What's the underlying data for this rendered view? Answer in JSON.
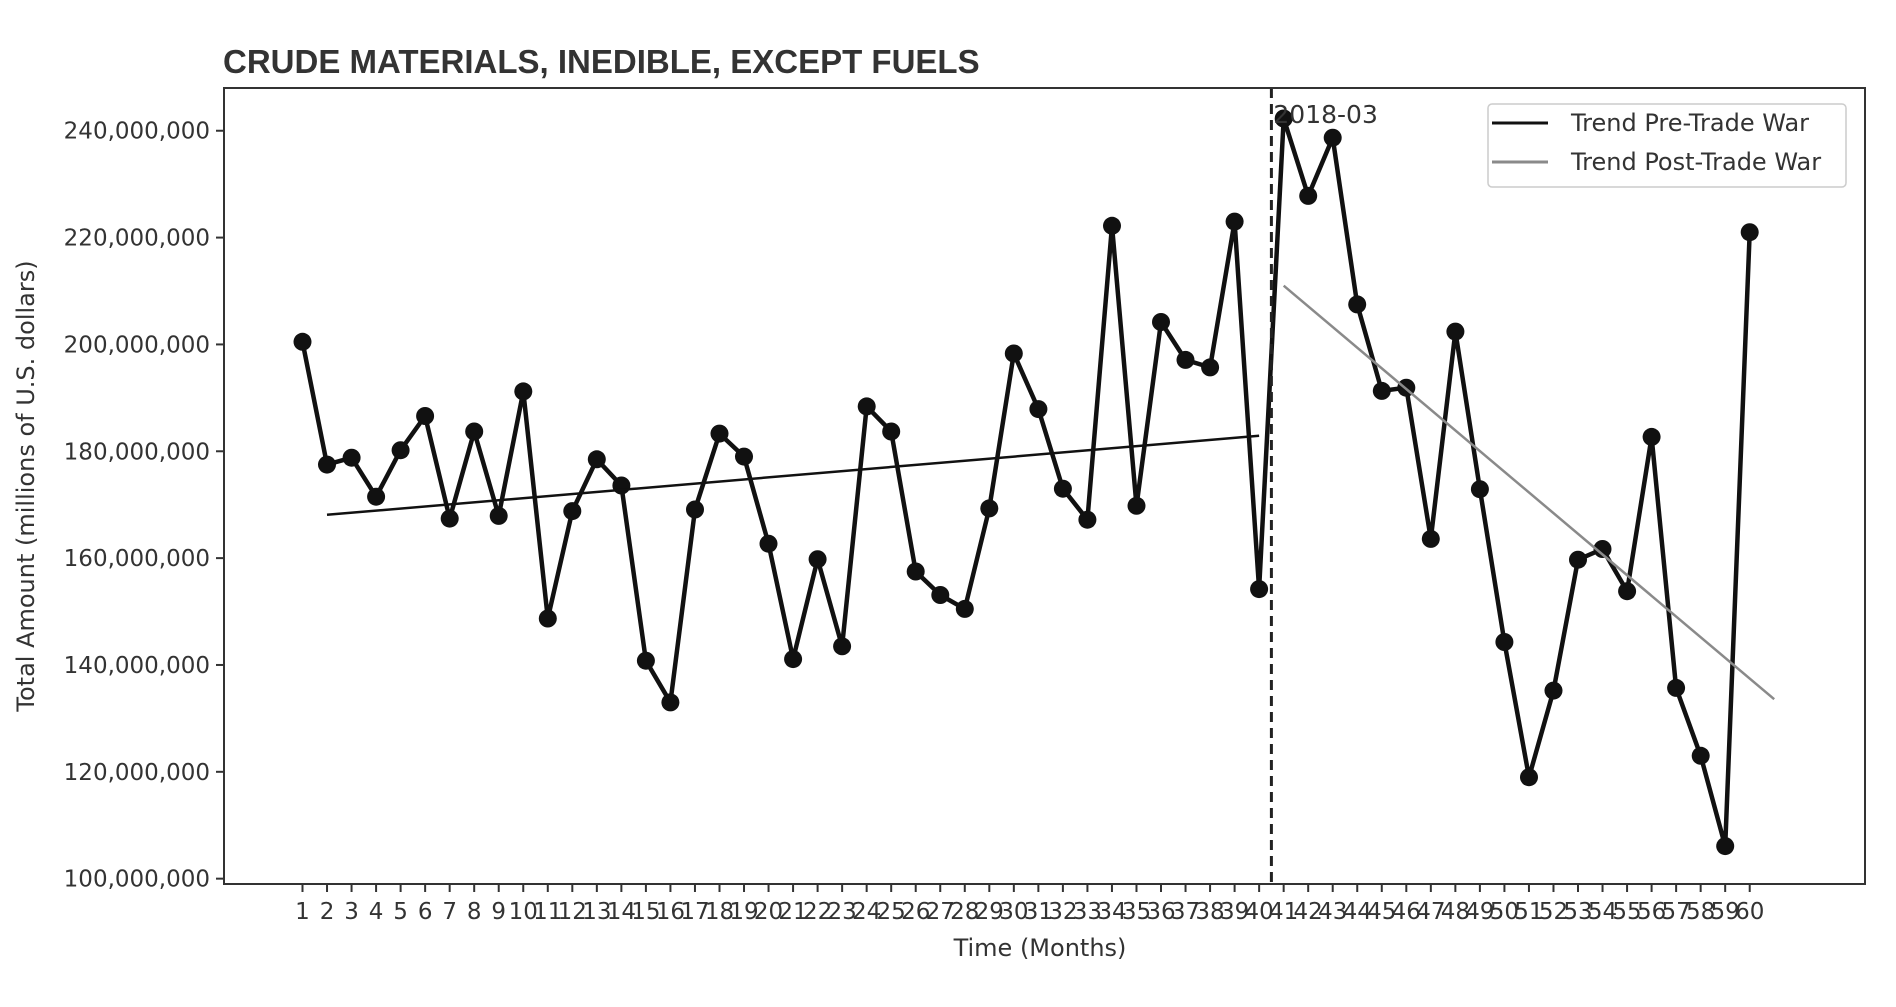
{
  "chart_data": {
    "type": "line",
    "title": "CRUDE MATERIALS, INEDIBLE, EXCEPT FUELS",
    "xlabel": "Time (Months)",
    "ylabel": "Total Amount (millions of U.S. dollars)",
    "xlim": [
      -2.2,
      64.7
    ],
    "ylim": [
      99000000,
      248000000
    ],
    "y_ticks": [
      100000000,
      120000000,
      140000000,
      160000000,
      180000000,
      200000000,
      220000000,
      240000000
    ],
    "y_tick_labels": [
      "100,000,000",
      "120,000,000",
      "140,000,000",
      "160,000,000",
      "180,000,000",
      "200,000,000",
      "220,000,000",
      "240,000,000"
    ],
    "x_ticks": [
      1,
      2,
      3,
      4,
      5,
      6,
      7,
      8,
      9,
      10,
      11,
      12,
      13,
      14,
      15,
      16,
      17,
      18,
      19,
      20,
      21,
      22,
      23,
      24,
      25,
      26,
      27,
      28,
      29,
      30,
      31,
      32,
      33,
      34,
      35,
      36,
      37,
      38,
      39,
      40,
      41,
      42,
      43,
      44,
      45,
      46,
      47,
      48,
      49,
      50,
      51,
      52,
      53,
      54,
      55,
      56,
      57,
      58,
      59,
      60
    ],
    "x_tick_labels": [
      "1",
      "2",
      "3",
      "4",
      "5",
      "6",
      "7",
      "8",
      "9",
      "10",
      "11",
      "12",
      "13",
      "14",
      "15",
      "16",
      "17",
      "18",
      "19",
      "20",
      "21",
      "22",
      "23",
      "24",
      "25",
      "26",
      "27",
      "28",
      "29",
      "30",
      "31",
      "32",
      "33",
      "34",
      "35",
      "36",
      "37",
      "38",
      "39",
      "40",
      "41",
      "42",
      "43",
      "44",
      "45",
      "46",
      "47",
      "48",
      "49",
      "50",
      "51",
      "52",
      "53",
      "54",
      "55",
      "56",
      "57",
      "58",
      "59",
      "60"
    ],
    "grid": false,
    "legend_position": "top-right",
    "series": [
      {
        "kind": "data",
        "color": "#111111",
        "x": [
          1,
          2,
          3,
          4,
          5,
          6,
          7,
          8,
          9,
          10,
          11,
          12,
          13,
          14,
          15,
          16,
          17,
          18,
          19,
          20,
          21,
          22,
          23,
          24,
          25,
          26,
          27,
          28,
          29,
          30,
          31,
          32,
          33,
          34,
          35,
          36,
          37,
          38,
          39,
          40,
          41,
          42,
          43,
          44,
          45,
          46,
          47,
          48,
          49,
          50,
          51,
          52,
          53,
          54,
          55,
          56,
          57,
          58,
          59,
          60
        ],
        "values": [
          200500000,
          177500000,
          178800000,
          171500000,
          180200000,
          186600000,
          167400000,
          183700000,
          167900000,
          191200000,
          148700000,
          168800000,
          178500000,
          173600000,
          140800000,
          133000000,
          169100000,
          183300000,
          179000000,
          162700000,
          141100000,
          159800000,
          143500000,
          188400000,
          183700000,
          157500000,
          153100000,
          150500000,
          169300000,
          198300000,
          187900000,
          173000000,
          167200000,
          222200000,
          169800000,
          204200000,
          197100000,
          195700000,
          223000000,
          154200000,
          242300000,
          227800000,
          238700000,
          207500000,
          191300000,
          191900000,
          163600000,
          202400000,
          172900000,
          144300000,
          119000000,
          135200000,
          159700000,
          161700000,
          153800000,
          182700000,
          135700000,
          123000000,
          106100000,
          221000000
        ]
      },
      {
        "kind": "trend",
        "name": "Trend Pre-Trade War",
        "color": "#111111",
        "x": [
          2,
          40
        ],
        "values": [
          168100000,
          182900000
        ]
      },
      {
        "kind": "trend",
        "name": "Trend Post-Trade War",
        "color": "#8a8a8a",
        "x": [
          41,
          61
        ],
        "values": [
          211000000,
          133600000
        ]
      }
    ],
    "vline": {
      "x": 40.5,
      "style": "dashed",
      "color": "#222222"
    },
    "annotations": [
      {
        "text": "2018-03",
        "x": 40.5,
        "y": 242200000
      }
    ]
  }
}
